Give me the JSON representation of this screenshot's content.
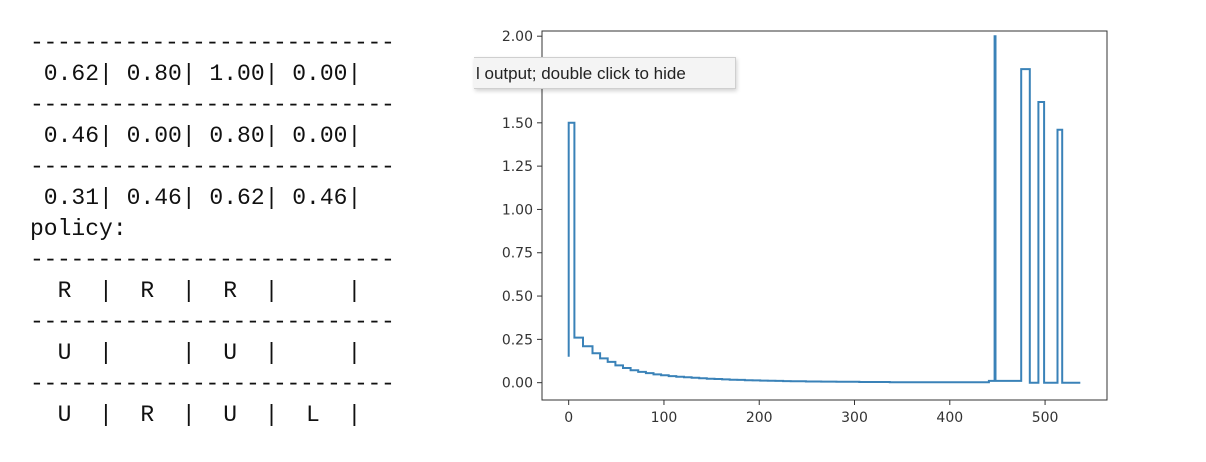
{
  "console": {
    "separator": "---------------------------",
    "values_rows": [
      " 0.62| 0.80| 1.00| 0.00|",
      " 0.46| 0.00| 0.80| 0.00|",
      " 0.31| 0.46| 0.62| 0.46|"
    ],
    "policy_label": "policy:",
    "policy_rows": [
      "  R  |  R  |  R  |     |",
      "  U  |     |  U  |     |",
      "  U  |  R  |  U  |  L  |"
    ]
  },
  "tooltip": {
    "text": "l output; double click to hide"
  },
  "chart_data": {
    "type": "line",
    "title": "",
    "xlabel": "",
    "ylabel": "",
    "xlim": [
      -28,
      565
    ],
    "ylim": [
      -0.1,
      2.03
    ],
    "xticks": [
      "0",
      "100",
      "200",
      "300",
      "400",
      "500"
    ],
    "yticks": [
      "0.00",
      "0.25",
      "0.50",
      "0.75",
      "1.00",
      "1.25",
      "1.50",
      "1.75",
      "2.00"
    ],
    "color": "#3a82b8",
    "series": [
      {
        "points": [
          [
            0,
            0.15
          ],
          [
            0,
            1.5
          ],
          [
            6,
            1.5
          ],
          [
            6,
            0.26
          ],
          [
            15,
            0.26
          ],
          [
            15,
            0.21
          ],
          [
            25,
            0.21
          ],
          [
            25,
            0.17
          ],
          [
            33,
            0.17
          ],
          [
            33,
            0.14
          ],
          [
            41,
            0.14
          ],
          [
            41,
            0.12
          ],
          [
            49,
            0.12
          ],
          [
            49,
            0.1
          ],
          [
            57,
            0.1
          ],
          [
            57,
            0.085
          ],
          [
            65,
            0.085
          ],
          [
            65,
            0.072
          ],
          [
            73,
            0.072
          ],
          [
            73,
            0.062
          ],
          [
            81,
            0.062
          ],
          [
            81,
            0.055
          ],
          [
            89,
            0.055
          ],
          [
            89,
            0.048
          ],
          [
            97,
            0.048
          ],
          [
            97,
            0.043
          ],
          [
            105,
            0.043
          ],
          [
            105,
            0.038
          ],
          [
            113,
            0.038
          ],
          [
            113,
            0.034
          ],
          [
            121,
            0.034
          ],
          [
            121,
            0.031
          ],
          [
            129,
            0.031
          ],
          [
            129,
            0.028
          ],
          [
            137,
            0.028
          ],
          [
            137,
            0.025
          ],
          [
            145,
            0.025
          ],
          [
            145,
            0.023
          ],
          [
            153,
            0.023
          ],
          [
            153,
            0.021
          ],
          [
            161,
            0.021
          ],
          [
            161,
            0.019
          ],
          [
            169,
            0.019
          ],
          [
            169,
            0.017
          ],
          [
            177,
            0.017
          ],
          [
            177,
            0.016
          ],
          [
            185,
            0.016
          ],
          [
            185,
            0.014
          ],
          [
            193,
            0.014
          ],
          [
            193,
            0.013
          ],
          [
            201,
            0.013
          ],
          [
            201,
            0.012
          ],
          [
            209,
            0.012
          ],
          [
            209,
            0.011
          ],
          [
            217,
            0.011
          ],
          [
            217,
            0.01
          ],
          [
            225,
            0.01
          ],
          [
            225,
            0.009
          ],
          [
            233,
            0.009
          ],
          [
            233,
            0.008
          ],
          [
            241,
            0.008
          ],
          [
            241,
            0.008
          ],
          [
            249,
            0.008
          ],
          [
            249,
            0.007
          ],
          [
            257,
            0.007
          ],
          [
            257,
            0.007
          ],
          [
            265,
            0.007
          ],
          [
            265,
            0.006
          ],
          [
            273,
            0.006
          ],
          [
            273,
            0.006
          ],
          [
            281,
            0.006
          ],
          [
            281,
            0.005
          ],
          [
            289,
            0.005
          ],
          [
            289,
            0.005
          ],
          [
            297,
            0.005
          ],
          [
            297,
            0.005
          ],
          [
            305,
            0.005
          ],
          [
            305,
            0.004
          ],
          [
            313,
            0.004
          ],
          [
            313,
            0.004
          ],
          [
            321,
            0.004
          ],
          [
            321,
            0.004
          ],
          [
            329,
            0.004
          ],
          [
            329,
            0.004
          ],
          [
            337,
            0.004
          ],
          [
            337,
            0.003
          ],
          [
            345,
            0.003
          ],
          [
            345,
            0.003
          ],
          [
            353,
            0.003
          ],
          [
            353,
            0.003
          ],
          [
            361,
            0.003
          ],
          [
            361,
            0.003
          ],
          [
            369,
            0.003
          ],
          [
            369,
            0.003
          ],
          [
            377,
            0.003
          ],
          [
            377,
            0.003
          ],
          [
            385,
            0.003
          ],
          [
            385,
            0.002
          ],
          [
            393,
            0.002
          ],
          [
            393,
            0.002
          ],
          [
            401,
            0.002
          ],
          [
            401,
            0.002
          ],
          [
            409,
            0.002
          ],
          [
            409,
            0.002
          ],
          [
            417,
            0.002
          ],
          [
            417,
            0.002
          ],
          [
            425,
            0.002
          ],
          [
            425,
            0.002
          ],
          [
            433,
            0.002
          ],
          [
            433,
            0.002
          ],
          [
            441,
            0.002
          ],
          [
            441,
            0.01
          ],
          [
            447,
            0.01
          ],
          [
            447,
            2.0
          ],
          [
            448,
            2.0
          ],
          [
            448,
            0.01
          ],
          [
            475,
            0.01
          ],
          [
            475,
            1.81
          ],
          [
            484,
            1.81
          ],
          [
            484,
            0.0
          ],
          [
            493,
            0.0
          ],
          [
            493,
            1.62
          ],
          [
            499,
            1.62
          ],
          [
            499,
            0.0
          ],
          [
            513,
            0.0
          ],
          [
            513,
            1.46
          ],
          [
            518,
            1.46
          ],
          [
            518,
            0.0
          ],
          [
            537,
            0.0
          ]
        ]
      }
    ]
  }
}
